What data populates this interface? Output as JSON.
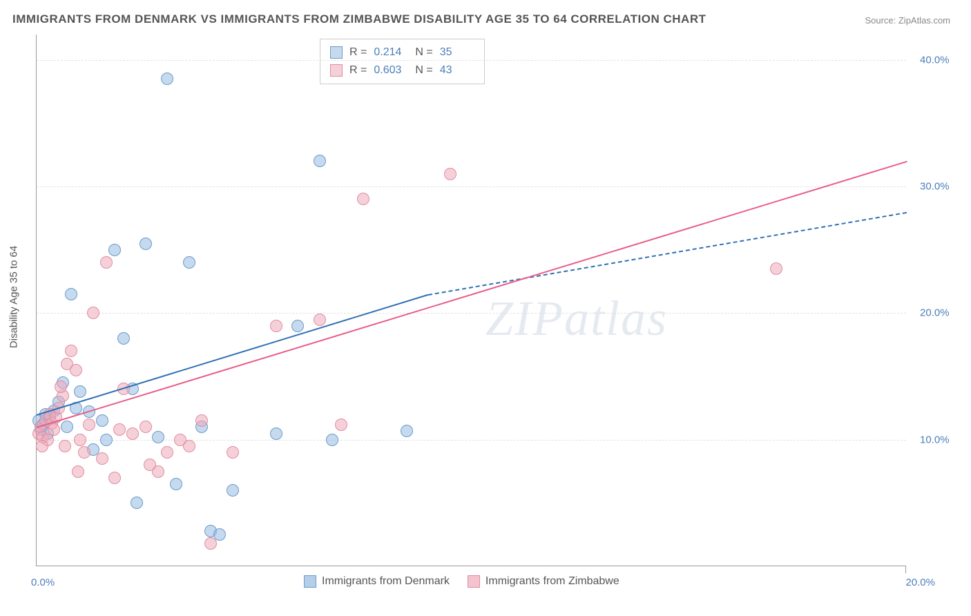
{
  "chart": {
    "title": "IMMIGRANTS FROM DENMARK VS IMMIGRANTS FROM ZIMBABWE DISABILITY AGE 35 TO 64 CORRELATION CHART",
    "source": "Source: ZipAtlas.com",
    "ylabel": "Disability Age 35 to 64",
    "watermark": "ZIPatlas",
    "type": "scatter",
    "xlim": [
      0,
      20
    ],
    "ylim": [
      0,
      42
    ],
    "yticks": [
      10,
      20,
      30,
      40
    ],
    "ytick_labels": [
      "10.0%",
      "20.0%",
      "30.0%",
      "40.0%"
    ],
    "xtick_left": "0.0%",
    "xtick_right": "20.0%",
    "grid_color": "#e2e2e2",
    "axis_color": "#999999",
    "tick_label_color": "#4a7ebb",
    "label_color": "#555555",
    "background_color": "#ffffff",
    "marker_size": 18,
    "series": [
      {
        "name": "Immigrants from Denmark",
        "fill_color": "rgba(150, 185, 225, 0.55)",
        "stroke_color": "#6b9bc9",
        "line_color": "#2e6fb4",
        "R": "0.214",
        "N": "35",
        "points": [
          [
            0.05,
            11.5
          ],
          [
            0.1,
            10.8
          ],
          [
            0.15,
            11.2
          ],
          [
            0.2,
            12.0
          ],
          [
            0.25,
            10.5
          ],
          [
            0.3,
            11.8
          ],
          [
            0.4,
            12.3
          ],
          [
            0.5,
            13.0
          ],
          [
            0.6,
            14.5
          ],
          [
            0.7,
            11.0
          ],
          [
            0.8,
            21.5
          ],
          [
            1.0,
            13.8
          ],
          [
            1.2,
            12.2
          ],
          [
            1.5,
            11.5
          ],
          [
            1.8,
            25.0
          ],
          [
            2.0,
            18.0
          ],
          [
            2.2,
            14.0
          ],
          [
            2.5,
            25.5
          ],
          [
            2.8,
            10.2
          ],
          [
            3.0,
            38.5
          ],
          [
            3.2,
            6.5
          ],
          [
            3.5,
            24.0
          ],
          [
            3.8,
            11.0
          ],
          [
            4.0,
            2.8
          ],
          [
            4.2,
            2.5
          ],
          [
            4.5,
            6.0
          ],
          [
            5.5,
            10.5
          ],
          [
            6.0,
            19.0
          ],
          [
            6.5,
            32.0
          ],
          [
            6.8,
            10.0
          ],
          [
            8.5,
            10.7
          ],
          [
            2.3,
            5.0
          ],
          [
            1.6,
            10.0
          ],
          [
            1.3,
            9.2
          ],
          [
            0.9,
            12.5
          ]
        ],
        "trend": {
          "x1": 0,
          "y1": 12.0,
          "x2": 9.0,
          "y2": 21.5
        },
        "trend_dashed": {
          "x1": 9.0,
          "y1": 21.5,
          "x2": 20.0,
          "y2": 28.0
        }
      },
      {
        "name": "Immigrants from Zimbabwe",
        "fill_color": "rgba(238, 170, 185, 0.55)",
        "stroke_color": "#e08ca0",
        "line_color": "#e85d88",
        "R": "0.603",
        "N": "43",
        "points": [
          [
            0.05,
            10.5
          ],
          [
            0.1,
            11.0
          ],
          [
            0.15,
            10.2
          ],
          [
            0.2,
            11.5
          ],
          [
            0.25,
            10.0
          ],
          [
            0.3,
            12.0
          ],
          [
            0.35,
            11.3
          ],
          [
            0.4,
            10.8
          ],
          [
            0.45,
            11.8
          ],
          [
            0.5,
            12.5
          ],
          [
            0.6,
            13.5
          ],
          [
            0.7,
            16.0
          ],
          [
            0.8,
            17.0
          ],
          [
            0.9,
            15.5
          ],
          [
            1.0,
            10.0
          ],
          [
            1.1,
            9.0
          ],
          [
            1.3,
            20.0
          ],
          [
            1.5,
            8.5
          ],
          [
            1.6,
            24.0
          ],
          [
            1.8,
            7.0
          ],
          [
            2.0,
            14.0
          ],
          [
            2.2,
            10.5
          ],
          [
            2.5,
            11.0
          ],
          [
            2.8,
            7.5
          ],
          [
            3.0,
            9.0
          ],
          [
            3.3,
            10.0
          ],
          [
            3.5,
            9.5
          ],
          [
            3.8,
            11.5
          ],
          [
            4.0,
            1.8
          ],
          [
            4.5,
            9.0
          ],
          [
            5.5,
            19.0
          ],
          [
            6.5,
            19.5
          ],
          [
            7.0,
            11.2
          ],
          [
            7.5,
            29.0
          ],
          [
            9.5,
            31.0
          ],
          [
            17.0,
            23.5
          ],
          [
            0.55,
            14.2
          ],
          [
            0.65,
            9.5
          ],
          [
            0.95,
            7.5
          ],
          [
            1.2,
            11.2
          ],
          [
            1.9,
            10.8
          ],
          [
            2.6,
            8.0
          ],
          [
            0.12,
            9.5
          ]
        ],
        "trend": {
          "x1": 0,
          "y1": 11.0,
          "x2": 20.0,
          "y2": 32.0
        }
      }
    ],
    "legend_bottom": [
      {
        "label": "Immigrants from Denmark",
        "fill": "rgba(150, 185, 225, 0.7)",
        "stroke": "#6b9bc9"
      },
      {
        "label": "Immigrants from Zimbabwe",
        "fill": "rgba(238, 170, 185, 0.7)",
        "stroke": "#e08ca0"
      }
    ]
  }
}
